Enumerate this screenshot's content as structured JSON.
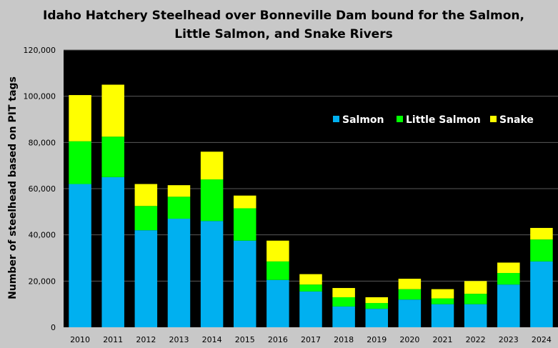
{
  "chart_data": {
    "type": "bar",
    "stacked": true,
    "title_lines": [
      "Idaho Hatchery Steelhead over Bonneville Dam bound for the Salmon,",
      "Little Salmon, and Snake Rivers"
    ],
    "xlabel": "",
    "ylabel": "Number of steelhead based on PIT tags",
    "ylim": [
      0,
      120000
    ],
    "yticks": [
      0,
      20000,
      40000,
      60000,
      80000,
      100000,
      120000
    ],
    "ytick_labels": [
      "0",
      "20,000",
      "40,000",
      "60,000",
      "80,000",
      "100,000",
      "120,000"
    ],
    "grid": true,
    "legend_position": "upper-right",
    "categories": [
      "2010",
      "2011",
      "2012",
      "2013",
      "2014",
      "2015",
      "2016",
      "2017",
      "2018",
      "2019",
      "2020",
      "2021",
      "2022",
      "2023",
      "2024"
    ],
    "series": [
      {
        "name": "Salmon",
        "color": "#00b0f0",
        "values": [
          62000,
          65000,
          42000,
          47000,
          46000,
          37500,
          20500,
          15500,
          9000,
          8000,
          12000,
          10000,
          10000,
          18500,
          28500
        ]
      },
      {
        "name": "Little Salmon",
        "color": "#00ff00",
        "values": [
          18500,
          17500,
          10500,
          9500,
          18000,
          14000,
          8000,
          3000,
          4000,
          2500,
          4500,
          2500,
          4500,
          5000,
          9500
        ]
      },
      {
        "name": "Snake",
        "color": "#ffff00",
        "values": [
          20000,
          22500,
          9500,
          5000,
          12000,
          5500,
          9000,
          4500,
          4000,
          2500,
          4500,
          4000,
          5500,
          4500,
          5000
        ]
      }
    ]
  },
  "colors": {
    "page_background": "#c8c8c8",
    "plot_background": "#000000",
    "gridline": "#595959",
    "legend_text": "#ffffff"
  }
}
